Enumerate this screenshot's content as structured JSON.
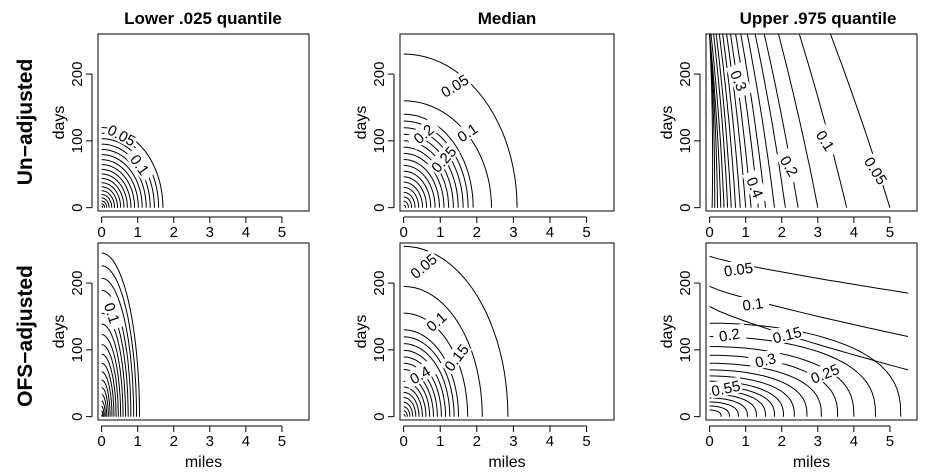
{
  "figure": {
    "column_titles": [
      "Lower .025 quantile",
      "Median",
      "Upper .975 quantile"
    ],
    "row_titles": [
      "Un−adjusted",
      "OFS−adjusted"
    ]
  },
  "chart_data": [
    {
      "type": "contour",
      "row": "Un−adjusted",
      "column": "Lower .025 quantile",
      "xlabel": "",
      "ylabel": "days",
      "xlim": [
        -0.1,
        5.75
      ],
      "ylim": [
        -5,
        260
      ],
      "xticks": [
        0,
        1,
        2,
        3,
        4,
        5
      ],
      "yticks": [
        0,
        100,
        200
      ],
      "contour_shape": "elliptic",
      "levels": [
        0.05,
        0.1,
        0.15,
        0.2,
        0.25,
        0.3,
        0.35,
        0.4,
        0.45,
        0.5,
        0.55,
        0.6,
        0.65,
        0.7,
        0.75,
        0.8,
        0.85,
        0.9,
        0.95
      ],
      "level_extents": [
        {
          "level": 0.05,
          "x_at_day0": 1.7,
          "days_at_mile0": 120
        },
        {
          "level": 0.1,
          "x_at_day0": 1.25,
          "days_at_mile0": 90
        }
      ],
      "contour_labels": [
        "0.05",
        "0.1"
      ]
    },
    {
      "type": "contour",
      "row": "Un−adjusted",
      "column": "Median",
      "xlabel": "",
      "ylabel": "days",
      "xlim": [
        -0.1,
        5.75
      ],
      "ylim": [
        -5,
        260
      ],
      "xticks": [
        0,
        1,
        2,
        3,
        4,
        5
      ],
      "yticks": [
        0,
        100,
        200
      ],
      "contour_shape": "elliptic",
      "levels": [
        0.05,
        0.1,
        0.15,
        0.2,
        0.25,
        0.3,
        0.35,
        0.4,
        0.45,
        0.5,
        0.55,
        0.6,
        0.65,
        0.7,
        0.75,
        0.8,
        0.85,
        0.9,
        0.95
      ],
      "level_extents": [
        {
          "level": 0.05,
          "x_at_day0": 3.1,
          "days_at_mile0": 230
        },
        {
          "level": 0.1,
          "x_at_day0": 2.4,
          "days_at_mile0": 160
        },
        {
          "level": 0.2,
          "x_at_day0": 1.65,
          "days_at_mile0": 120
        },
        {
          "level": 0.25,
          "x_at_day0": 1.45,
          "days_at_mile0": 100
        }
      ],
      "contour_labels": [
        "0.05",
        "0.1",
        "0.2",
        "0.25"
      ]
    },
    {
      "type": "contour",
      "row": "Un−adjusted",
      "column": "Upper .975 quantile",
      "xlabel": "",
      "ylabel": "days",
      "xlim": [
        -0.1,
        5.75
      ],
      "ylim": [
        -5,
        260
      ],
      "xticks": [
        0,
        1,
        2,
        3,
        4,
        5
      ],
      "yticks": [
        0,
        100,
        200
      ],
      "contour_shape": "near-vertical",
      "levels": [
        0.05,
        0.1,
        0.15,
        0.2,
        0.25,
        0.3,
        0.35,
        0.4,
        0.45,
        0.5,
        0.55,
        0.6,
        0.65,
        0.7,
        0.75,
        0.8,
        0.85,
        0.9,
        0.95
      ],
      "level_extents": [
        {
          "level": 0.05,
          "x_at_day0": 5.0,
          "x_at_day260": 3.9
        },
        {
          "level": 0.1,
          "x_at_day0": 3.8,
          "x_at_day260": 2.6
        },
        {
          "level": 0.15,
          "x_at_day0": 3.0,
          "x_at_day260": 1.85
        },
        {
          "level": 0.2,
          "x_at_day0": 2.45,
          "x_at_day260": 1.55
        },
        {
          "level": 0.3,
          "x_at_day0": 1.8,
          "x_at_day260": 0.85
        },
        {
          "level": 0.4,
          "x_at_day0": 1.35,
          "x_at_day260": 0.5
        }
      ],
      "contour_labels": [
        "0.3",
        "0.4",
        "0.2",
        "0.1",
        "0.05"
      ]
    },
    {
      "type": "contour",
      "row": "OFS−adjusted",
      "column": "Lower .025 quantile",
      "xlabel": "miles",
      "ylabel": "days",
      "xlim": [
        -0.1,
        5.75
      ],
      "ylim": [
        -5,
        260
      ],
      "xticks": [
        0,
        1,
        2,
        3,
        4,
        5
      ],
      "yticks": [
        0,
        100,
        200
      ],
      "contour_shape": "elliptic",
      "levels": [
        0.05,
        0.1,
        0.15,
        0.2,
        0.25,
        0.3,
        0.35,
        0.4,
        0.45,
        0.5,
        0.55,
        0.6,
        0.65,
        0.7,
        0.75,
        0.8,
        0.85,
        0.9,
        0.95
      ],
      "level_extents": [
        {
          "level": 0.05,
          "x_at_day0": 1.05,
          "days_at_mile0": 245
        },
        {
          "level": 0.1,
          "x_at_day0": 0.85,
          "days_at_mile0": 190
        }
      ],
      "contour_labels": [
        "0.1"
      ]
    },
    {
      "type": "contour",
      "row": "OFS−adjusted",
      "column": "Median",
      "xlabel": "miles",
      "ylabel": "days",
      "xlim": [
        -0.1,
        5.75
      ],
      "ylim": [
        -5,
        260
      ],
      "xticks": [
        0,
        1,
        2,
        3,
        4,
        5
      ],
      "yticks": [
        0,
        100,
        200
      ],
      "contour_shape": "elliptic",
      "levels": [
        0.05,
        0.1,
        0.15,
        0.2,
        0.25,
        0.3,
        0.35,
        0.4,
        0.45,
        0.5,
        0.55,
        0.6,
        0.65,
        0.7,
        0.75,
        0.8,
        0.85,
        0.9,
        0.95
      ],
      "level_extents": [
        {
          "level": 0.05,
          "x_at_day0": 2.85,
          "days_at_mile0": 255
        },
        {
          "level": 0.1,
          "x_at_day0": 2.15,
          "days_at_mile0": 195
        },
        {
          "level": 0.15,
          "x_at_day0": 1.75,
          "days_at_mile0": 155
        },
        {
          "level": 0.4,
          "x_at_day0": 0.95,
          "days_at_mile0": 80
        }
      ],
      "contour_labels": [
        "0.05",
        "0.1",
        "0.15",
        "0.4"
      ]
    },
    {
      "type": "contour",
      "row": "OFS−adjusted",
      "column": "Upper .975 quantile",
      "xlabel": "miles",
      "ylabel": "days",
      "xlim": [
        -0.1,
        5.75
      ],
      "ylim": [
        -5,
        260
      ],
      "xticks": [
        0,
        1,
        2,
        3,
        4,
        5
      ],
      "yticks": [
        0,
        100,
        200
      ],
      "contour_shape": "wedge",
      "levels": [
        0.05,
        0.1,
        0.15,
        0.2,
        0.25,
        0.3,
        0.35,
        0.4,
        0.45,
        0.5,
        0.55,
        0.6,
        0.65
      ],
      "level_extents": [
        {
          "level": 0.05,
          "days_at_mile0": 240,
          "days_at_mile5.5": 185
        },
        {
          "level": 0.1,
          "days_at_mile0": 195,
          "days_at_mile5.5": 120
        },
        {
          "level": 0.15,
          "days_at_mile0": 165,
          "days_at_mile5.5": 70
        },
        {
          "level": 0.2,
          "days_at_mile0": 140,
          "x_at_day0": 5.3
        },
        {
          "level": 0.25,
          "days_at_mile0": 120,
          "x_at_day0": 4.6
        },
        {
          "level": 0.3,
          "days_at_mile0": 105,
          "x_at_day0": 4.0
        }
      ],
      "contour_labels": [
        "0.05",
        "0.1",
        "0.2",
        "0.15",
        "0.3",
        "0.25",
        "0.55"
      ]
    }
  ]
}
